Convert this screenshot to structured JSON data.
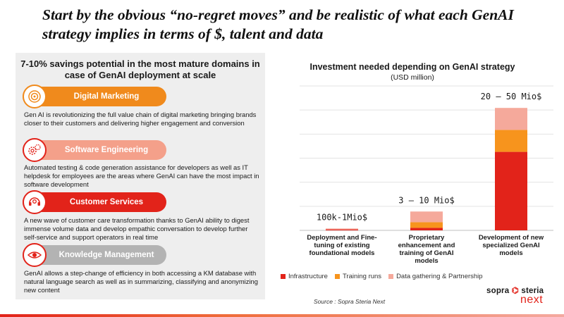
{
  "headline": "Start by the obvious “no-regret moves” and be realistic of what each GenAI strategy implies in terms of $, talent and data",
  "left_panel": {
    "title": "7-10% savings potential in the most mature domains in case of GenAI deployment at scale",
    "domains": [
      {
        "label": "Digital Marketing",
        "icon": "target-icon",
        "color": "#f08a1c",
        "description": "Gen AI is revolutionizing the full value chain of digital marketing bringing brands closer to their customers and delivering higher engagement and conversion"
      },
      {
        "label": "Software Engineering",
        "icon": "gears-icon",
        "color": "#f4a08a",
        "description": "Automated testing & code generation assistance for developers as well as IT helpdesk for employees are the areas where GenAI can have the most impact in software development"
      },
      {
        "label": "Customer Services",
        "icon": "headset-icon",
        "color": "#e2231a",
        "description": "A new wave of customer care transformation thanks to GenAI ability to digest immense volume data and develop empathic conversation to develop further self-service and support operators in real time"
      },
      {
        "label": "Knowledge Management",
        "icon": "eye-icon",
        "color": "#b3b3b3",
        "description": "GenAI allows a step-change of efficiency in both accessing a KM database with natural language search as well as in summarizing, classifying and anonymizing new content"
      }
    ]
  },
  "chart_data": {
    "type": "bar",
    "stacked": true,
    "title": "Investment needed depending on GenAI strategy",
    "subtitle": "(USD million)",
    "categories": [
      "Deployment and Fine-tuning of existing foundational models",
      "Proprietary enhancement and training of GenAI models",
      "Development of new specialized GenAI models"
    ],
    "series": [
      {
        "name": "Infrastructure",
        "color": "#e2231a",
        "values": [
          0.3,
          0.8,
          25
        ]
      },
      {
        "name": "Training runs",
        "color": "#f7941d",
        "values": [
          0,
          1.8,
          7
        ]
      },
      {
        "name": "Data gathering & Partnership",
        "color": "#f5a99b",
        "values": [
          0.3,
          3.4,
          7
        ]
      }
    ],
    "data_labels": [
      "100k-1Mio$",
      "3 – 10 Mio$",
      "20 – 50 Mio$"
    ],
    "ylim": [
      0,
      46
    ],
    "gridlines": true,
    "legend_position": "bottom"
  },
  "source": "Source  : Sopra Steria Next",
  "logo": {
    "brand": "sopra",
    "star": "⌬",
    "brand2": "steria",
    "next": "next"
  }
}
